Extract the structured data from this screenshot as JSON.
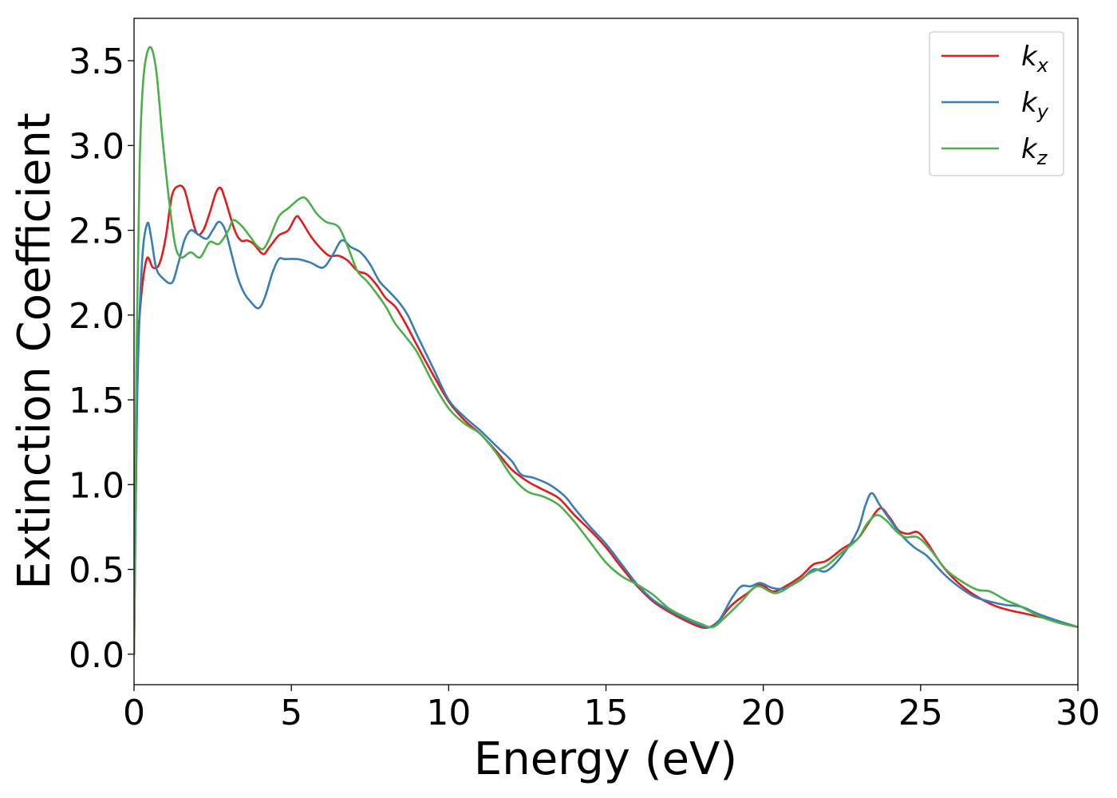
{
  "chart_data": {
    "type": "line",
    "xlabel": "Energy (eV)",
    "ylabel": "Extinction Coefficient",
    "xlim": [
      0,
      30
    ],
    "ylim": [
      -0.18,
      3.75
    ],
    "xticks": [
      0,
      5,
      10,
      15,
      20,
      25,
      30
    ],
    "xtick_labels": [
      "0",
      "5",
      "10",
      "15",
      "20",
      "25",
      "30"
    ],
    "yticks": [
      0.0,
      0.5,
      1.0,
      1.5,
      2.0,
      2.5,
      3.0,
      3.5
    ],
    "ytick_labels": [
      "0.0",
      "0.5",
      "1.0",
      "1.5",
      "2.0",
      "2.5",
      "3.0",
      "3.5"
    ],
    "grid": false,
    "legend_position": "top-right",
    "series": [
      {
        "name": "k",
        "subscript": "x",
        "color": "#e41a1c",
        "points": [
          [
            0,
            0
          ],
          [
            0.1,
            1.6
          ],
          [
            0.2,
            2.05
          ],
          [
            0.4,
            2.33
          ],
          [
            0.6,
            2.28
          ],
          [
            0.8,
            2.3
          ],
          [
            1.0,
            2.45
          ],
          [
            1.2,
            2.7
          ],
          [
            1.4,
            2.76
          ],
          [
            1.6,
            2.74
          ],
          [
            1.8,
            2.6
          ],
          [
            2.0,
            2.48
          ],
          [
            2.2,
            2.5
          ],
          [
            2.4,
            2.6
          ],
          [
            2.6,
            2.72
          ],
          [
            2.75,
            2.75
          ],
          [
            2.9,
            2.68
          ],
          [
            3.2,
            2.5
          ],
          [
            3.4,
            2.44
          ],
          [
            3.6,
            2.44
          ],
          [
            3.8,
            2.42
          ],
          [
            4.1,
            2.36
          ],
          [
            4.3,
            2.4
          ],
          [
            4.6,
            2.47
          ],
          [
            4.9,
            2.5
          ],
          [
            5.15,
            2.58
          ],
          [
            5.3,
            2.56
          ],
          [
            5.6,
            2.47
          ],
          [
            5.9,
            2.4
          ],
          [
            6.2,
            2.35
          ],
          [
            6.5,
            2.35
          ],
          [
            6.8,
            2.32
          ],
          [
            7.1,
            2.26
          ],
          [
            7.4,
            2.24
          ],
          [
            7.7,
            2.18
          ],
          [
            8.0,
            2.1
          ],
          [
            8.3,
            2.05
          ],
          [
            8.6,
            1.96
          ],
          [
            9.0,
            1.82
          ],
          [
            9.5,
            1.65
          ],
          [
            10.0,
            1.49
          ],
          [
            10.5,
            1.38
          ],
          [
            11.0,
            1.3
          ],
          [
            11.5,
            1.2
          ],
          [
            12.0,
            1.09
          ],
          [
            12.5,
            1.02
          ],
          [
            13.0,
            0.97
          ],
          [
            13.5,
            0.92
          ],
          [
            14.0,
            0.82
          ],
          [
            14.5,
            0.73
          ],
          [
            15.0,
            0.63
          ],
          [
            15.5,
            0.51
          ],
          [
            16.0,
            0.4
          ],
          [
            16.5,
            0.31
          ],
          [
            17.0,
            0.25
          ],
          [
            17.5,
            0.2
          ],
          [
            18.0,
            0.16
          ],
          [
            18.3,
            0.16
          ],
          [
            18.6,
            0.2
          ],
          [
            19.0,
            0.29
          ],
          [
            19.5,
            0.36
          ],
          [
            19.9,
            0.41
          ],
          [
            20.3,
            0.37
          ],
          [
            20.7,
            0.4
          ],
          [
            21.2,
            0.46
          ],
          [
            21.6,
            0.53
          ],
          [
            22.0,
            0.55
          ],
          [
            22.5,
            0.62
          ],
          [
            23.0,
            0.68
          ],
          [
            23.3,
            0.76
          ],
          [
            23.7,
            0.86
          ],
          [
            24.0,
            0.81
          ],
          [
            24.3,
            0.73
          ],
          [
            24.6,
            0.71
          ],
          [
            24.9,
            0.72
          ],
          [
            25.2,
            0.66
          ],
          [
            25.7,
            0.52
          ],
          [
            26.2,
            0.42
          ],
          [
            26.7,
            0.35
          ],
          [
            27.3,
            0.29
          ],
          [
            27.8,
            0.26
          ],
          [
            28.3,
            0.24
          ],
          [
            29.0,
            0.21
          ],
          [
            29.5,
            0.18
          ],
          [
            30.0,
            0.16
          ]
        ]
      },
      {
        "name": "k",
        "subscript": "y",
        "color": "#377eb8",
        "points": [
          [
            0,
            0
          ],
          [
            0.1,
            1.5
          ],
          [
            0.25,
            2.3
          ],
          [
            0.42,
            2.54
          ],
          [
            0.55,
            2.45
          ],
          [
            0.7,
            2.28
          ],
          [
            0.9,
            2.22
          ],
          [
            1.2,
            2.19
          ],
          [
            1.4,
            2.3
          ],
          [
            1.6,
            2.44
          ],
          [
            1.8,
            2.5
          ],
          [
            2.0,
            2.48
          ],
          [
            2.3,
            2.45
          ],
          [
            2.5,
            2.5
          ],
          [
            2.7,
            2.55
          ],
          [
            2.9,
            2.5
          ],
          [
            3.1,
            2.36
          ],
          [
            3.3,
            2.22
          ],
          [
            3.5,
            2.13
          ],
          [
            3.7,
            2.08
          ],
          [
            3.95,
            2.04
          ],
          [
            4.15,
            2.1
          ],
          [
            4.4,
            2.25
          ],
          [
            4.6,
            2.33
          ],
          [
            4.8,
            2.33
          ],
          [
            5.2,
            2.33
          ],
          [
            5.6,
            2.31
          ],
          [
            6.0,
            2.28
          ],
          [
            6.3,
            2.35
          ],
          [
            6.6,
            2.44
          ],
          [
            6.9,
            2.4
          ],
          [
            7.2,
            2.37
          ],
          [
            7.5,
            2.3
          ],
          [
            7.8,
            2.2
          ],
          [
            8.1,
            2.14
          ],
          [
            8.4,
            2.08
          ],
          [
            8.7,
            2.0
          ],
          [
            9.0,
            1.88
          ],
          [
            9.5,
            1.69
          ],
          [
            10.0,
            1.5
          ],
          [
            10.5,
            1.4
          ],
          [
            11.0,
            1.32
          ],
          [
            11.5,
            1.23
          ],
          [
            12.0,
            1.14
          ],
          [
            12.3,
            1.06
          ],
          [
            12.7,
            1.04
          ],
          [
            13.2,
            1.0
          ],
          [
            13.7,
            0.93
          ],
          [
            14.0,
            0.86
          ],
          [
            14.5,
            0.75
          ],
          [
            15.0,
            0.65
          ],
          [
            15.5,
            0.53
          ],
          [
            16.0,
            0.41
          ],
          [
            16.5,
            0.32
          ],
          [
            17.0,
            0.26
          ],
          [
            17.5,
            0.21
          ],
          [
            18.0,
            0.17
          ],
          [
            18.3,
            0.16
          ],
          [
            18.6,
            0.2
          ],
          [
            19.0,
            0.33
          ],
          [
            19.3,
            0.4
          ],
          [
            19.6,
            0.4
          ],
          [
            19.9,
            0.42
          ],
          [
            20.3,
            0.39
          ],
          [
            20.7,
            0.39
          ],
          [
            21.2,
            0.44
          ],
          [
            21.6,
            0.5
          ],
          [
            22.0,
            0.49
          ],
          [
            22.5,
            0.58
          ],
          [
            23.0,
            0.73
          ],
          [
            23.25,
            0.88
          ],
          [
            23.45,
            0.95
          ],
          [
            23.7,
            0.88
          ],
          [
            24.0,
            0.8
          ],
          [
            24.4,
            0.7
          ],
          [
            24.8,
            0.63
          ],
          [
            25.2,
            0.58
          ],
          [
            25.7,
            0.48
          ],
          [
            26.2,
            0.4
          ],
          [
            26.7,
            0.34
          ],
          [
            27.2,
            0.31
          ],
          [
            27.7,
            0.29
          ],
          [
            28.2,
            0.28
          ],
          [
            28.7,
            0.24
          ],
          [
            29.3,
            0.2
          ],
          [
            30.0,
            0.16
          ]
        ]
      },
      {
        "name": "k",
        "subscript": "z",
        "color": "#4daf4a",
        "points": [
          [
            0,
            0
          ],
          [
            0.08,
            1.8
          ],
          [
            0.18,
            2.9
          ],
          [
            0.3,
            3.4
          ],
          [
            0.5,
            3.58
          ],
          [
            0.7,
            3.45
          ],
          [
            0.9,
            3.05
          ],
          [
            1.1,
            2.7
          ],
          [
            1.3,
            2.42
          ],
          [
            1.5,
            2.34
          ],
          [
            1.8,
            2.37
          ],
          [
            2.1,
            2.34
          ],
          [
            2.4,
            2.43
          ],
          [
            2.7,
            2.42
          ],
          [
            3.0,
            2.5
          ],
          [
            3.15,
            2.56
          ],
          [
            3.4,
            2.53
          ],
          [
            3.7,
            2.46
          ],
          [
            3.9,
            2.41
          ],
          [
            4.1,
            2.39
          ],
          [
            4.3,
            2.45
          ],
          [
            4.6,
            2.58
          ],
          [
            4.9,
            2.63
          ],
          [
            5.3,
            2.69
          ],
          [
            5.5,
            2.68
          ],
          [
            5.8,
            2.6
          ],
          [
            6.1,
            2.55
          ],
          [
            6.5,
            2.52
          ],
          [
            6.8,
            2.4
          ],
          [
            7.1,
            2.26
          ],
          [
            7.4,
            2.2
          ],
          [
            7.7,
            2.13
          ],
          [
            8.0,
            2.05
          ],
          [
            8.3,
            1.95
          ],
          [
            8.6,
            1.88
          ],
          [
            9.0,
            1.78
          ],
          [
            9.5,
            1.6
          ],
          [
            10.0,
            1.45
          ],
          [
            10.5,
            1.36
          ],
          [
            11.0,
            1.3
          ],
          [
            11.5,
            1.19
          ],
          [
            12.0,
            1.05
          ],
          [
            12.5,
            0.96
          ],
          [
            13.0,
            0.93
          ],
          [
            13.5,
            0.88
          ],
          [
            14.0,
            0.78
          ],
          [
            14.5,
            0.66
          ],
          [
            15.0,
            0.54
          ],
          [
            15.5,
            0.46
          ],
          [
            16.0,
            0.41
          ],
          [
            16.5,
            0.35
          ],
          [
            17.0,
            0.27
          ],
          [
            17.5,
            0.22
          ],
          [
            18.0,
            0.18
          ],
          [
            18.4,
            0.16
          ],
          [
            18.8,
            0.22
          ],
          [
            19.3,
            0.31
          ],
          [
            19.8,
            0.4
          ],
          [
            20.4,
            0.36
          ],
          [
            21.0,
            0.42
          ],
          [
            21.5,
            0.48
          ],
          [
            22.0,
            0.52
          ],
          [
            22.5,
            0.6
          ],
          [
            23.0,
            0.68
          ],
          [
            23.3,
            0.77
          ],
          [
            23.6,
            0.82
          ],
          [
            23.9,
            0.79
          ],
          [
            24.2,
            0.73
          ],
          [
            24.5,
            0.69
          ],
          [
            24.9,
            0.69
          ],
          [
            25.3,
            0.62
          ],
          [
            25.8,
            0.5
          ],
          [
            26.3,
            0.43
          ],
          [
            26.8,
            0.38
          ],
          [
            27.2,
            0.37
          ],
          [
            27.7,
            0.32
          ],
          [
            28.2,
            0.28
          ],
          [
            28.7,
            0.23
          ],
          [
            29.3,
            0.19
          ],
          [
            30.0,
            0.16
          ]
        ]
      }
    ]
  }
}
